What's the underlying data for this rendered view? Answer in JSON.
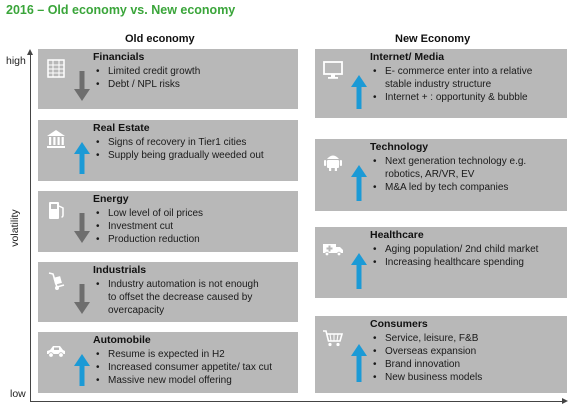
{
  "title": "2016 – Old economy vs. New economy",
  "columns": {
    "old": "Old economy",
    "new": "New Economy"
  },
  "axis": {
    "high": "high",
    "low": "low",
    "label": "volatility"
  },
  "old_economy": [
    {
      "title": "Financials",
      "icon": "building-grid-icon",
      "trend": "down",
      "bullets": [
        "Limited credit growth",
        "Debt / NPL risks"
      ]
    },
    {
      "title": "Real Estate",
      "icon": "government-building-icon",
      "trend": "up",
      "bullets": [
        "Signs of recovery in Tier1 cities",
        "Supply being gradually weeded out"
      ]
    },
    {
      "title": "Energy",
      "icon": "fuel-pump-icon",
      "trend": "down",
      "bullets": [
        "Low level of oil prices",
        "Investment cut",
        "Production reduction"
      ]
    },
    {
      "title": "Industrials",
      "icon": "hand-truck-icon",
      "trend": "down",
      "bullets": [
        "Industry automation is not enough",
        "to offset the decrease caused by",
        "overcapacity"
      ]
    },
    {
      "title": "Automobile",
      "icon": "car-icon",
      "trend": "up",
      "bullets": [
        "Resume is expected in H2",
        "Increased consumer appetite/ tax cut",
        "Massive new model offering"
      ]
    }
  ],
  "new_economy": [
    {
      "title": "Internet/ Media",
      "icon": "monitor-icon",
      "trend": "up",
      "bullets": [
        "E- commerce enter into a relative",
        "stable industry structure",
        "Internet + : opportunity & bubble"
      ]
    },
    {
      "title": "Technology",
      "icon": "android-robot-icon",
      "trend": "up",
      "bullets": [
        "Next generation technology e.g.",
        "robotics, AR/VR, EV",
        "M&A led by tech companies"
      ]
    },
    {
      "title": "Healthcare",
      "icon": "ambulance-icon",
      "trend": "up",
      "bullets": [
        "Aging population/ 2nd child market",
        "Increasing healthcare spending"
      ]
    },
    {
      "title": "Consumers",
      "icon": "shopping-cart-icon",
      "trend": "up",
      "bullets": [
        "Service, leisure, F&B",
        "Overseas expansion",
        "Brand innovation",
        "New business models"
      ]
    }
  ],
  "colors": {
    "title": "#3aa53a",
    "box": "#b8b8b8",
    "arrow_up": "#1b9ad6",
    "arrow_down": "#6e6e6e"
  }
}
